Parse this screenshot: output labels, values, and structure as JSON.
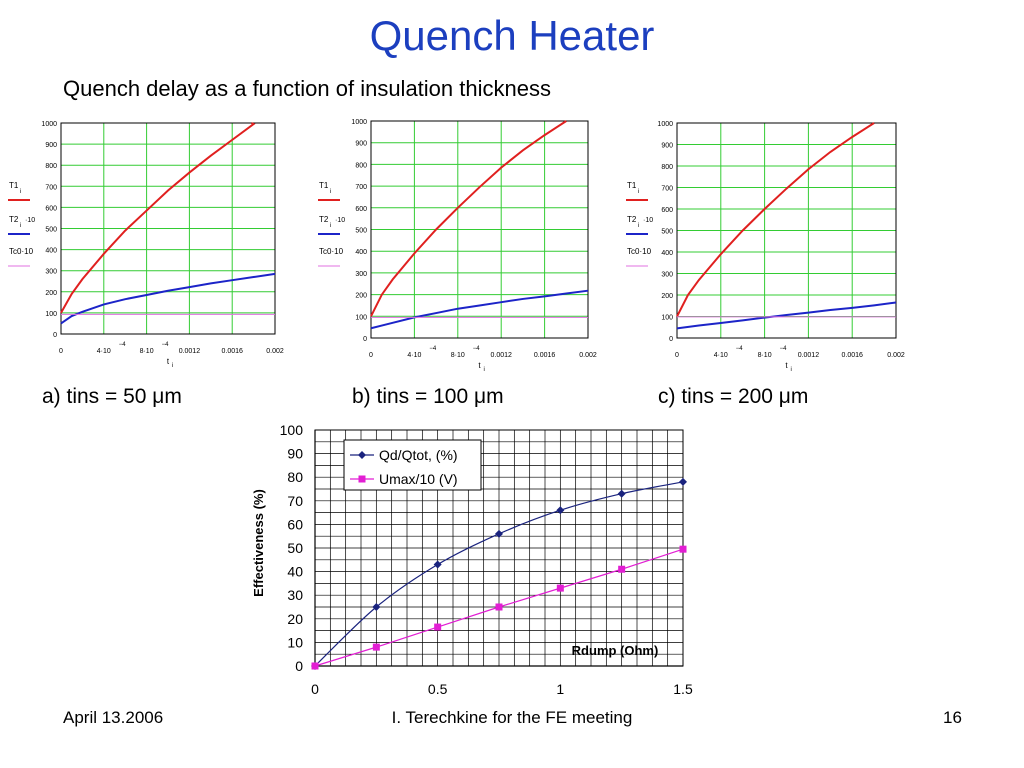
{
  "slide": {
    "title": "Quench Heater",
    "subtitle": "Quench delay as a function of insulation thickness",
    "footer_left": "April 13.2006",
    "footer_center": "I. Terechkine for the FE meeting",
    "footer_right": "16",
    "title_color": "#1c3fbf"
  },
  "chart_data": [
    {
      "type": "line",
      "caption": "a) tins = 50 μm",
      "xlabel": "t",
      "xlabel_sub": "i",
      "xlim": [
        0,
        0.002
      ],
      "ylim": [
        0,
        1000
      ],
      "x_ticks": [
        "0",
        "4·10",
        "8·10",
        "0.0012",
        "0.0016",
        "0.002"
      ],
      "x_tick_exp": [
        "",
        "−4",
        "−4",
        "",
        "",
        ""
      ],
      "y_ticks": [
        "0",
        "100",
        "200",
        "300",
        "400",
        "500",
        "600",
        "700",
        "800",
        "900",
        "1000"
      ],
      "legend": [
        {
          "label": "T1",
          "sub": "i",
          "suffix": "",
          "color": "#e0201f"
        },
        {
          "label": "T2",
          "sub": "i",
          "suffix": "·10",
          "color": "#1c24c8"
        },
        {
          "label": "Tc0·10",
          "sub": "",
          "suffix": "",
          "color": "#e070e0"
        }
      ],
      "series": [
        {
          "color": "#e0201f",
          "x": [
            0,
            0.0001,
            0.0002,
            0.0004,
            0.0006,
            0.0008,
            0.001,
            0.0012,
            0.0014,
            0.0016,
            0.0018,
            0.00178
          ],
          "y": [
            100,
            190,
            260,
            380,
            490,
            585,
            680,
            765,
            845,
            920,
            995,
            1000
          ]
        },
        {
          "color": "#1c24c8",
          "x": [
            0,
            0.0001,
            0.0002,
            0.0004,
            0.0006,
            0.0008,
            0.001,
            0.0012,
            0.0014,
            0.0016,
            0.0018,
            0.002
          ],
          "y": [
            50,
            85,
            105,
            140,
            165,
            185,
            205,
            222,
            240,
            255,
            270,
            285
          ]
        },
        {
          "color": "#e070e0",
          "x": [
            0,
            0.002
          ],
          "y": [
            93,
            93
          ]
        }
      ]
    },
    {
      "type": "line",
      "caption": "b) tins = 100 μm",
      "xlabel": "t",
      "xlabel_sub": "i",
      "xlim": [
        0,
        0.002
      ],
      "ylim": [
        0,
        1000
      ],
      "x_ticks": [
        "0",
        "4·10",
        "8·10",
        "0.0012",
        "0.0016",
        "0.002"
      ],
      "x_tick_exp": [
        "",
        "−4",
        "−4",
        "",
        "",
        ""
      ],
      "y_ticks": [
        "0",
        "100",
        "200",
        "300",
        "400",
        "500",
        "600",
        "700",
        "800",
        "900",
        "1000"
      ],
      "legend": [
        {
          "label": "T1",
          "sub": "i",
          "suffix": "",
          "color": "#e0201f"
        },
        {
          "label": "T2",
          "sub": "i",
          "suffix": "·10",
          "color": "#1c24c8"
        },
        {
          "label": "Tc0·10",
          "sub": "",
          "suffix": "",
          "color": "#e070e0"
        }
      ],
      "series": [
        {
          "color": "#e0201f",
          "x": [
            0,
            0.0001,
            0.0002,
            0.0004,
            0.0006,
            0.0008,
            0.001,
            0.0012,
            0.0014,
            0.0016,
            0.0018
          ],
          "y": [
            100,
            200,
            270,
            390,
            500,
            600,
            695,
            785,
            865,
            935,
            1000
          ]
        },
        {
          "color": "#1c24c8",
          "x": [
            0,
            0.0002,
            0.0004,
            0.0006,
            0.0008,
            0.001,
            0.0012,
            0.0014,
            0.0016,
            0.0018,
            0.002
          ],
          "y": [
            45,
            70,
            95,
            115,
            135,
            150,
            165,
            180,
            192,
            205,
            218
          ]
        },
        {
          "color": "#e070e0",
          "x": [
            0,
            0.002
          ],
          "y": [
            95,
            95
          ]
        }
      ]
    },
    {
      "type": "line",
      "caption": "c) tins = 200 μm",
      "xlabel": "t",
      "xlabel_sub": "i",
      "xlim": [
        0,
        0.002
      ],
      "ylim": [
        0,
        1000
      ],
      "x_ticks": [
        "0",
        "4·10",
        "8·10",
        "0.0012",
        "0.0016",
        "0.002"
      ],
      "x_tick_exp": [
        "",
        "−4",
        "−4",
        "",
        "",
        ""
      ],
      "y_ticks": [
        "0",
        "100",
        "200",
        "300",
        "400",
        "500",
        "600",
        "700",
        "800",
        "900",
        "1000"
      ],
      "legend": [
        {
          "label": "T1",
          "sub": "i",
          "suffix": "",
          "color": "#e0201f"
        },
        {
          "label": "T2",
          "sub": "i",
          "suffix": "·10",
          "color": "#1c24c8"
        },
        {
          "label": "Tc0·10",
          "sub": "",
          "suffix": "",
          "color": "#e070e0"
        }
      ],
      "series": [
        {
          "color": "#e0201f",
          "x": [
            0,
            0.0001,
            0.0002,
            0.0004,
            0.0006,
            0.0008,
            0.001,
            0.0012,
            0.0014,
            0.0016,
            0.0018
          ],
          "y": [
            100,
            200,
            270,
            390,
            500,
            600,
            695,
            785,
            865,
            935,
            1000
          ]
        },
        {
          "color": "#1c24c8",
          "x": [
            0,
            0.0002,
            0.0004,
            0.0006,
            0.0008,
            0.001,
            0.0012,
            0.0014,
            0.0016,
            0.0018,
            0.002
          ],
          "y": [
            45,
            58,
            70,
            82,
            95,
            107,
            118,
            130,
            140,
            152,
            165
          ]
        },
        {
          "color": "#e070e0",
          "x": [
            0,
            0.002
          ],
          "y": [
            98,
            98
          ]
        }
      ]
    },
    {
      "type": "line",
      "ylabel": "Effectiveness (%)",
      "xlabel": "Rdump (Ohm)",
      "xlim": [
        0,
        1.5
      ],
      "ylim": [
        0,
        100
      ],
      "x_ticks": [
        "0",
        "0.5",
        "1",
        "1.5"
      ],
      "y_ticks": [
        "0",
        "10",
        "20",
        "30",
        "40",
        "50",
        "60",
        "70",
        "80",
        "90",
        "100"
      ],
      "grid": true,
      "legend_position": "top-left",
      "series": [
        {
          "name": "Qd/Qtot, (%)",
          "color": "#1a237e",
          "marker": "diamond",
          "x": [
            0,
            0.25,
            0.5,
            0.75,
            1.0,
            1.25,
            1.5
          ],
          "y": [
            0,
            25,
            43,
            56,
            66,
            73,
            78
          ]
        },
        {
          "name": "Umax/10 (V)",
          "color": "#e21ed3",
          "marker": "square",
          "x": [
            0,
            0.25,
            0.5,
            0.75,
            1.0,
            1.25,
            1.5
          ],
          "y": [
            0,
            8,
            16.5,
            25,
            33,
            41,
            49.5
          ]
        }
      ]
    }
  ]
}
